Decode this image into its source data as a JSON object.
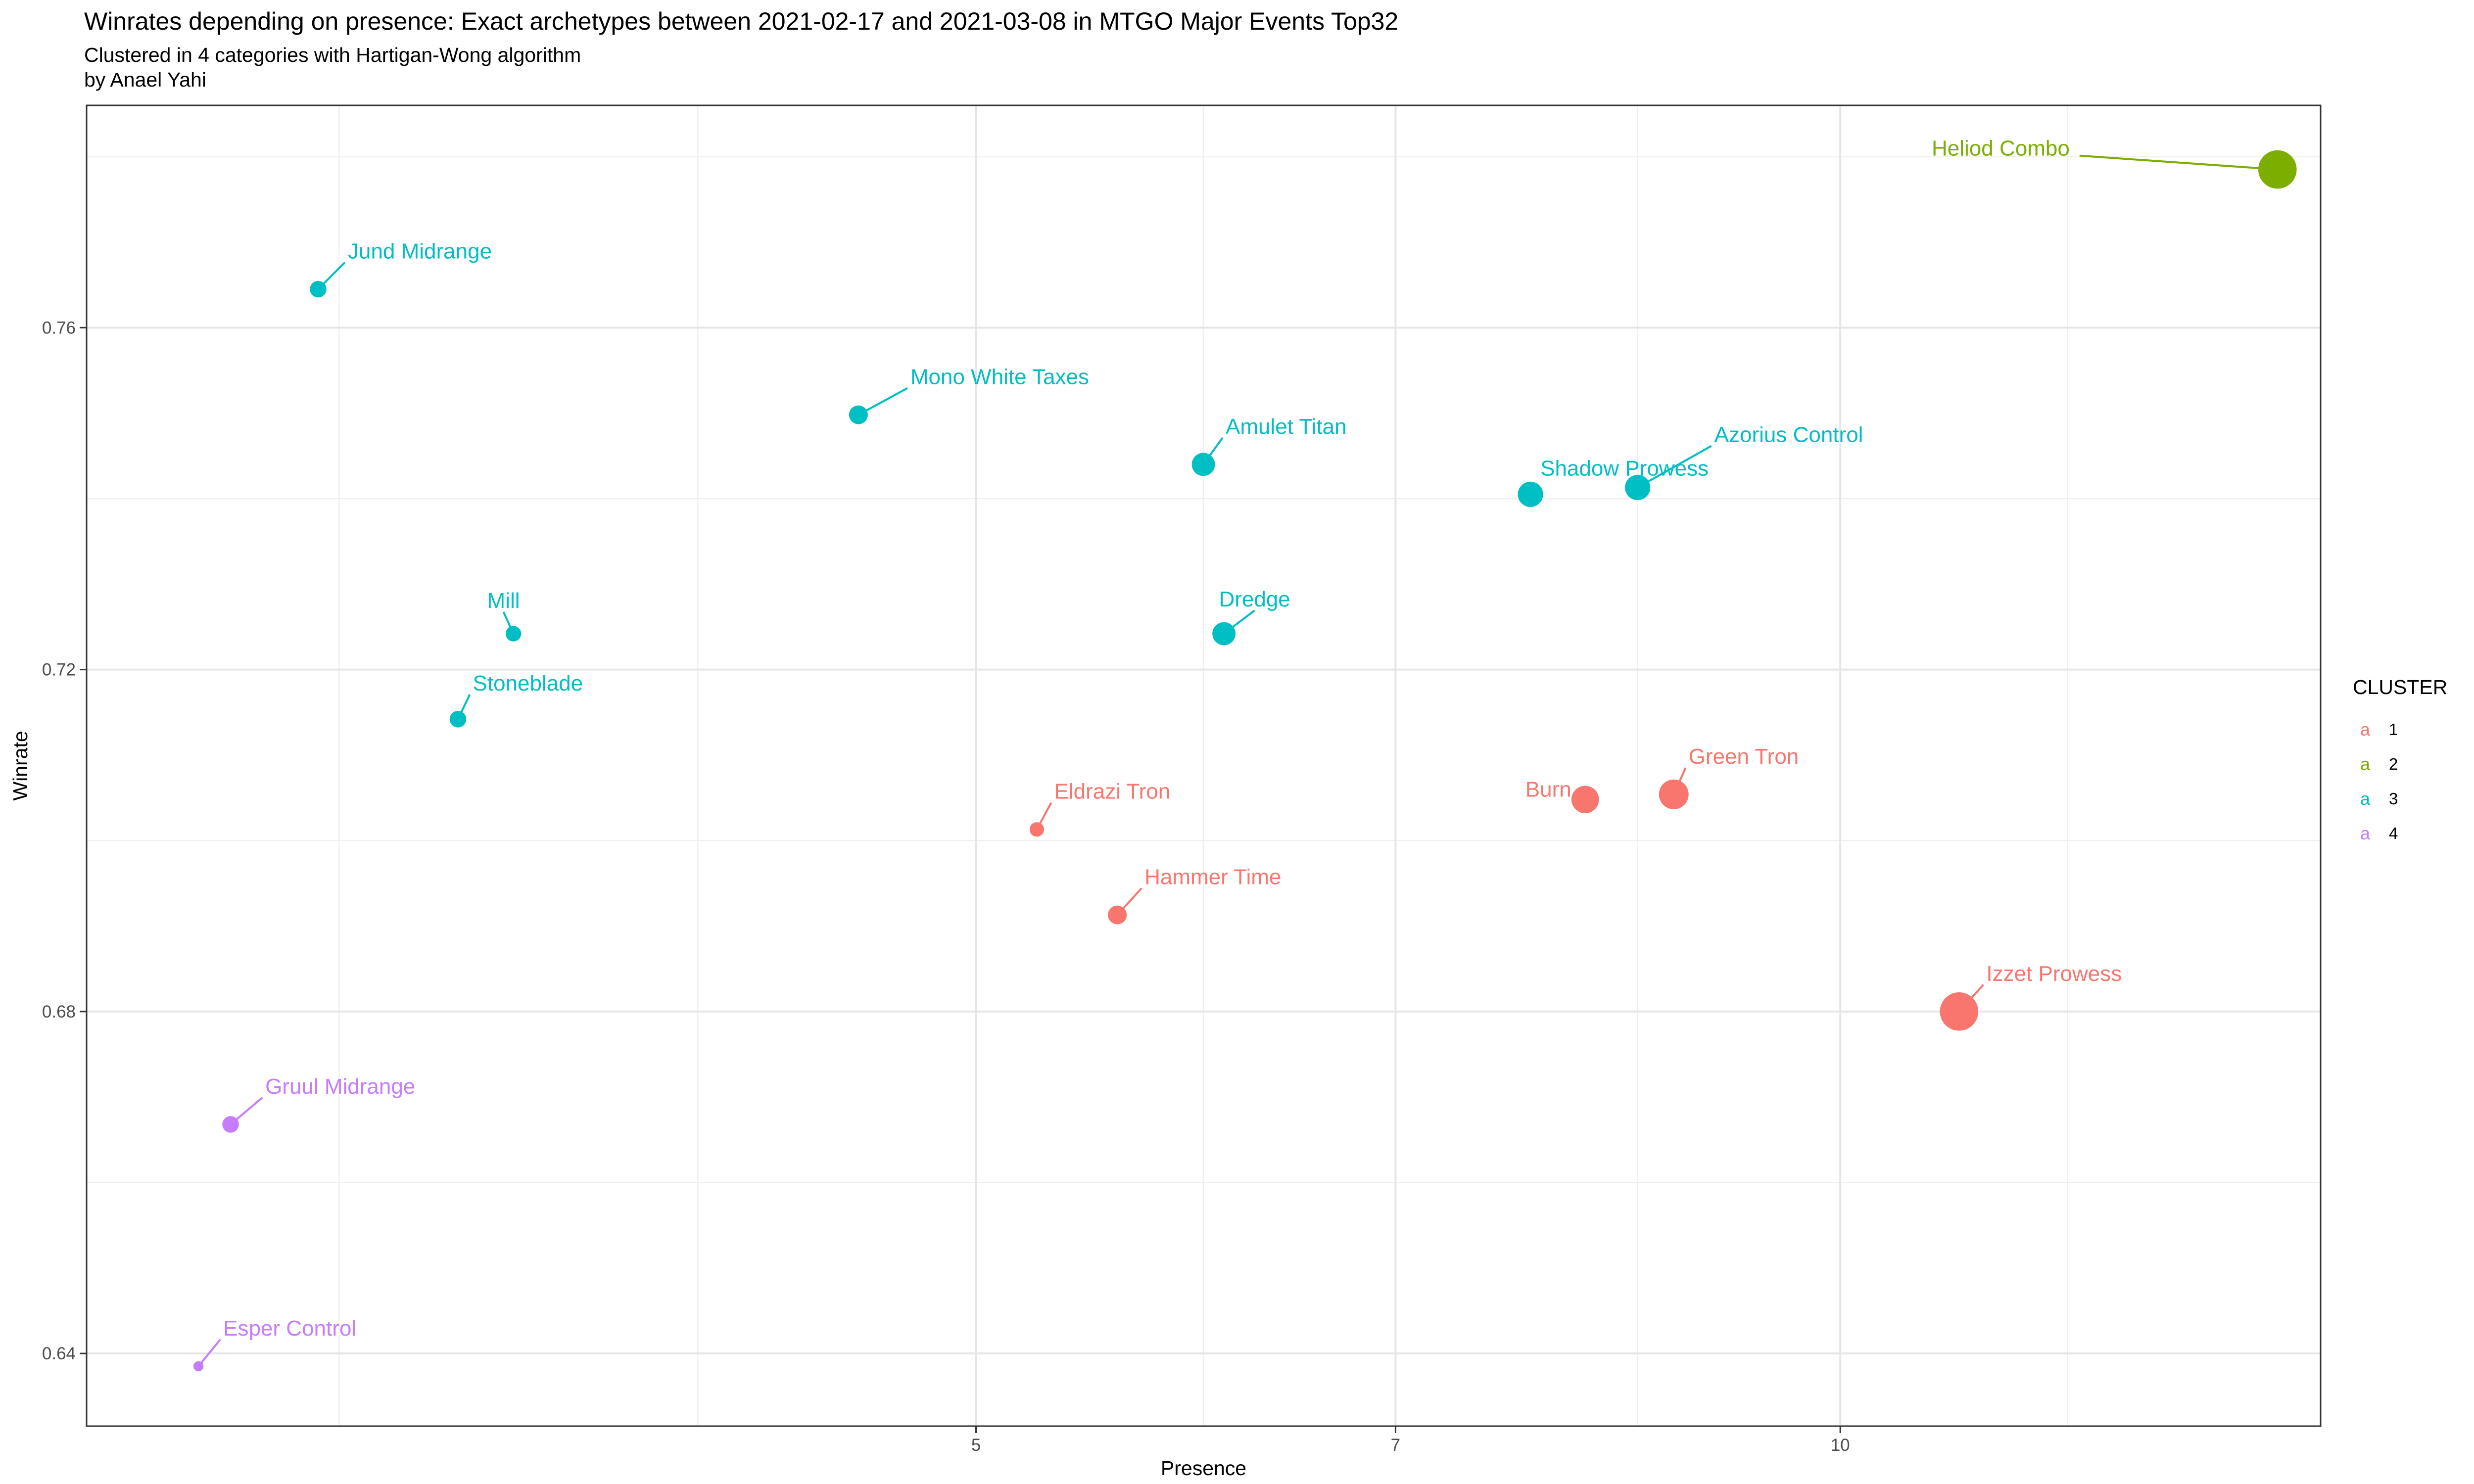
{
  "title": "Winrates depending on presence: Exact archetypes  between 2021-02-17 and 2021-03-08 in MTGO Major Events Top32",
  "subtitle": "Clustered in 4 categories with Hartigan-Wong algorithm",
  "caption": "by Anael Yahi",
  "legend": {
    "title": "CLUSTER",
    "key_glyph": "a",
    "items": [
      {
        "label": "1",
        "color": "#F8766D"
      },
      {
        "label": "2",
        "color": "#7CAE00"
      },
      {
        "label": "3",
        "color": "#00BFC4"
      },
      {
        "label": "4",
        "color": "#C77CFF"
      }
    ]
  },
  "chart_data": {
    "type": "scatter",
    "title": "Winrates depending on presence: Exact archetypes  between 2021-02-17 and 2021-03-08 in MTGO Major Events Top32",
    "subtitle": "Clustered in 4 categories with Hartigan-Wong algorithm",
    "xlabel": "Presence",
    "ylabel": "Winrate",
    "xscale": "log",
    "xlim": [
      2.45,
      14.7
    ],
    "ylim": [
      0.6315,
      0.786
    ],
    "xticks": [
      5,
      7,
      10
    ],
    "xtick_labels": [
      "5",
      "7",
      "10"
    ],
    "xgrid_minor": [
      3,
      4,
      6,
      8.5,
      12
    ],
    "yticks": [
      0.64,
      0.68,
      0.72,
      0.76
    ],
    "ytick_labels": [
      "0.64",
      "0.68",
      "0.72",
      "0.76"
    ],
    "ygrid_minor": [
      0.66,
      0.7,
      0.74,
      0.78
    ],
    "grid": true,
    "legend_position": "right",
    "points": [
      {
        "label": "Heliod Combo",
        "x": 14.2,
        "y": 0.7785,
        "cluster": 2,
        "size": 14
      },
      {
        "label": "Jund Midrange",
        "x": 2.95,
        "y": 0.7645,
        "cluster": 3,
        "size": 4
      },
      {
        "label": "Mono White Taxes",
        "x": 4.55,
        "y": 0.7498,
        "cluster": 3,
        "size": 5
      },
      {
        "label": "Amulet Titan",
        "x": 6.0,
        "y": 0.744,
        "cluster": 3,
        "size": 7
      },
      {
        "label": "Shadow Prowess",
        "x": 7.8,
        "y": 0.7405,
        "cluster": 3,
        "size": 8
      },
      {
        "label": "Azorius Control",
        "x": 8.5,
        "y": 0.7413,
        "cluster": 3,
        "size": 8
      },
      {
        "label": "Mill",
        "x": 3.45,
        "y": 0.7242,
        "cluster": 3,
        "size": 3.5
      },
      {
        "label": "Dredge",
        "x": 6.1,
        "y": 0.7242,
        "cluster": 3,
        "size": 7
      },
      {
        "label": "Stoneblade",
        "x": 3.3,
        "y": 0.7142,
        "cluster": 3,
        "size": 4
      },
      {
        "label": "Burn",
        "x": 8.15,
        "y": 0.7048,
        "cluster": 1,
        "size": 9
      },
      {
        "label": "Green Tron",
        "x": 8.75,
        "y": 0.7054,
        "cluster": 1,
        "size": 10
      },
      {
        "label": "Eldrazi Tron",
        "x": 5.25,
        "y": 0.7013,
        "cluster": 1,
        "size": 3
      },
      {
        "label": "Hammer Time",
        "x": 5.6,
        "y": 0.6913,
        "cluster": 1,
        "size": 5
      },
      {
        "label": "Izzet Prowess",
        "x": 11.0,
        "y": 0.68,
        "cluster": 1,
        "size": 14
      },
      {
        "label": "Gruul Midrange",
        "x": 2.75,
        "y": 0.6668,
        "cluster": 4,
        "size": 4
      },
      {
        "label": "Esper Control",
        "x": 2.68,
        "y": 0.6385,
        "cluster": 4,
        "size": 1
      }
    ]
  }
}
